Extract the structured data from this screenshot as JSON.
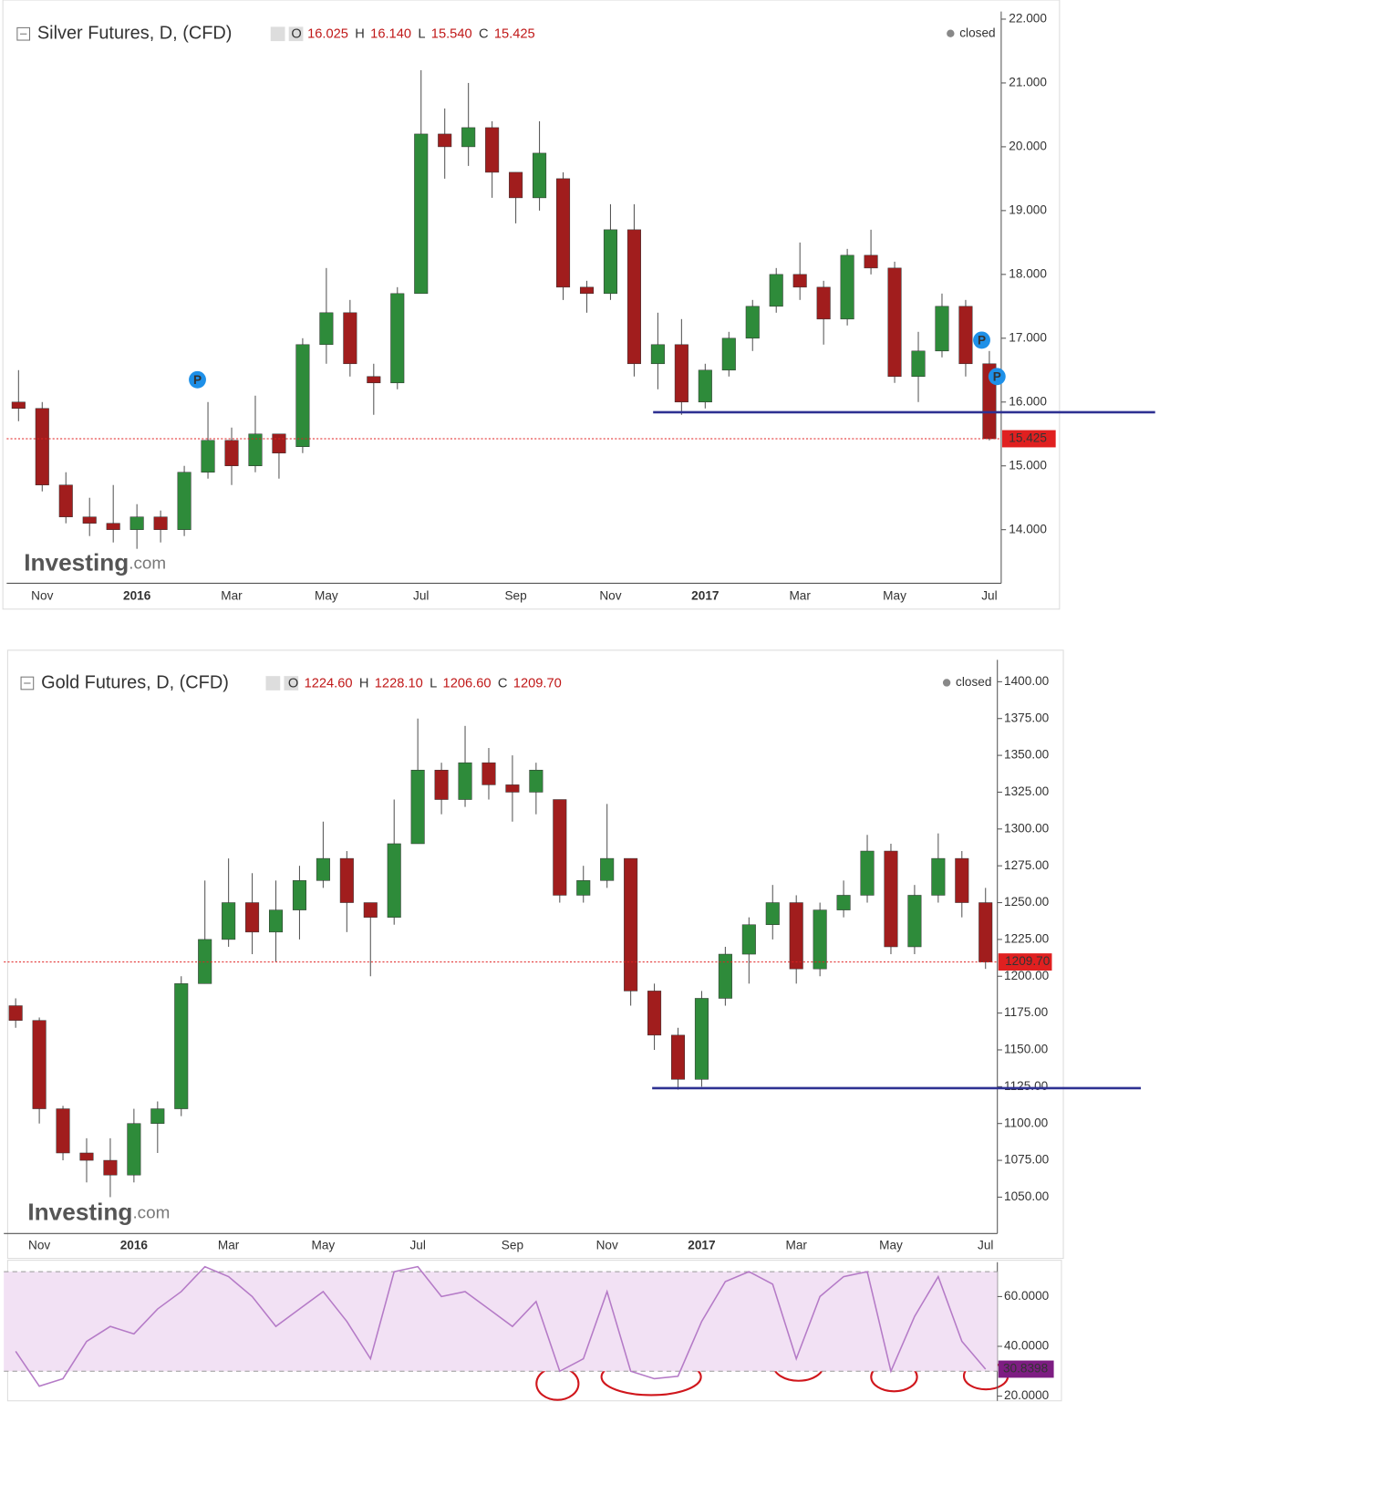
{
  "chart_data": [
    {
      "type": "candlestick",
      "title": "Silver Futures, D, (CFD)",
      "ohlc_labels": [
        "O",
        "H",
        "L",
        "C"
      ],
      "ohlc_values": [
        "16.025",
        "16.140",
        "15.540",
        "15.425"
      ],
      "status": "closed",
      "watermark": [
        "Investing",
        ".com"
      ],
      "categories": [
        null,
        "Nov",
        null,
        null,
        null,
        "2016",
        null,
        null,
        null,
        "Mar",
        null,
        null,
        null,
        "May",
        null,
        null,
        null,
        "Jul",
        null,
        null,
        null,
        "Sep",
        null,
        null,
        null,
        "Nov",
        null,
        null,
        null,
        "2017",
        null,
        null,
        null,
        "Mar",
        null,
        null,
        null,
        "May",
        null,
        null,
        null,
        "Jul"
      ],
      "open": [
        16.0,
        15.9,
        14.7,
        14.2,
        14.1,
        14.0,
        14.2,
        14.0,
        14.9,
        15.4,
        15.0,
        15.5,
        15.3,
        16.9,
        17.4,
        16.4,
        16.3,
        17.7,
        20.2,
        20.0,
        20.3,
        19.6,
        19.2,
        19.5,
        17.8,
        17.7,
        18.7,
        16.6,
        16.9,
        16.0,
        16.5,
        17.0,
        17.5,
        18.0,
        17.8,
        17.3,
        18.3,
        18.1,
        16.4,
        16.8,
        17.5,
        16.6
      ],
      "high": [
        16.5,
        16.0,
        14.9,
        14.5,
        14.7,
        14.4,
        14.3,
        15.0,
        16.0,
        15.6,
        16.1,
        15.5,
        17.0,
        18.1,
        17.6,
        16.6,
        17.8,
        21.2,
        20.6,
        21.0,
        20.4,
        19.6,
        20.4,
        19.6,
        17.9,
        19.1,
        19.1,
        17.4,
        17.3,
        16.6,
        17.1,
        17.6,
        18.1,
        18.5,
        17.9,
        18.4,
        18.7,
        18.2,
        17.1,
        17.7,
        17.6,
        16.8
      ],
      "low": [
        15.7,
        14.6,
        14.1,
        13.9,
        13.8,
        13.7,
        13.8,
        13.9,
        14.8,
        14.7,
        14.9,
        14.8,
        15.2,
        16.6,
        16.4,
        15.8,
        16.2,
        17.7,
        19.5,
        19.7,
        19.2,
        18.8,
        19.0,
        17.6,
        17.4,
        17.6,
        16.4,
        16.2,
        15.8,
        15.9,
        16.4,
        16.8,
        17.4,
        17.6,
        16.9,
        17.2,
        18.0,
        16.3,
        16.0,
        16.7,
        16.4,
        15.4
      ],
      "close": [
        15.9,
        14.7,
        14.2,
        14.1,
        14.0,
        14.2,
        14.0,
        14.9,
        15.4,
        15.0,
        15.5,
        15.2,
        16.9,
        17.4,
        16.6,
        16.3,
        17.7,
        20.2,
        20.0,
        20.3,
        19.6,
        19.2,
        19.9,
        17.8,
        17.7,
        18.7,
        16.6,
        16.9,
        16.0,
        16.5,
        17.0,
        17.5,
        18.0,
        17.8,
        17.3,
        18.3,
        18.1,
        16.4,
        16.8,
        17.5,
        16.6,
        15.425
      ],
      "last_price_label": "15.425",
      "up_color": "#2e8b3a",
      "down_color": "#a11d1d",
      "price_line_color": "#e02020",
      "support": {
        "value": 15.84,
        "color": "#2e3192"
      },
      "markers": [
        {
          "label": "P",
          "category": 8,
          "value": 16.35
        },
        {
          "label": "P",
          "category": 41,
          "value": 16.97
        },
        {
          "label": "P",
          "category": 41,
          "value": 16.4
        }
      ],
      "ylim": [
        13.16,
        22.12
      ],
      "yticks": [
        {
          "value": 14,
          "label": "14.000"
        },
        {
          "value": 15,
          "label": "15.000"
        },
        {
          "value": 16,
          "label": "16.000"
        },
        {
          "value": 17,
          "label": "17.000"
        },
        {
          "value": 18,
          "label": "18.000"
        },
        {
          "value": 19,
          "label": "19.000"
        },
        {
          "value": 20,
          "label": "20.000"
        },
        {
          "value": 21,
          "label": "21.000"
        },
        {
          "value": 22,
          "label": "22.000"
        }
      ]
    },
    {
      "type": "candlestick",
      "title": "Gold Futures, D, (CFD)",
      "ohlc_labels": [
        "O",
        "H",
        "L",
        "C"
      ],
      "ohlc_values": [
        "1224.60",
        "1228.10",
        "1206.60",
        "1209.70"
      ],
      "status": "closed",
      "watermark": [
        "Investing",
        ".com"
      ],
      "categories": [
        null,
        "Nov",
        null,
        null,
        null,
        "2016",
        null,
        null,
        null,
        "Mar",
        null,
        null,
        null,
        "May",
        null,
        null,
        null,
        "Jul",
        null,
        null,
        null,
        "Sep",
        null,
        null,
        null,
        "Nov",
        null,
        null,
        null,
        "2017",
        null,
        null,
        null,
        "Mar",
        null,
        null,
        null,
        "May",
        null,
        null,
        null,
        "Jul"
      ],
      "open": [
        1180,
        1170,
        1110,
        1080,
        1075,
        1065,
        1100,
        1110,
        1195,
        1225,
        1250,
        1230,
        1245,
        1265,
        1280,
        1250,
        1240,
        1290,
        1340,
        1320,
        1345,
        1330,
        1325,
        1320,
        1255,
        1265,
        1280,
        1190,
        1160,
        1130,
        1185,
        1215,
        1235,
        1250,
        1205,
        1245,
        1255,
        1285,
        1220,
        1255,
        1280,
        1250
      ],
      "high": [
        1185,
        1172,
        1112,
        1090,
        1090,
        1110,
        1115,
        1200,
        1265,
        1280,
        1270,
        1265,
        1275,
        1305,
        1285,
        1250,
        1320,
        1375,
        1345,
        1370,
        1355,
        1350,
        1345,
        1320,
        1275,
        1317,
        1280,
        1195,
        1165,
        1190,
        1220,
        1240,
        1262,
        1255,
        1250,
        1265,
        1296,
        1290,
        1262,
        1297,
        1285,
        1260
      ],
      "low": [
        1165,
        1100,
        1075,
        1060,
        1050,
        1060,
        1080,
        1105,
        1195,
        1220,
        1215,
        1210,
        1225,
        1260,
        1230,
        1200,
        1235,
        1290,
        1310,
        1315,
        1320,
        1305,
        1310,
        1250,
        1250,
        1260,
        1180,
        1150,
        1123,
        1125,
        1180,
        1195,
        1225,
        1195,
        1200,
        1240,
        1250,
        1215,
        1215,
        1250,
        1240,
        1205
      ],
      "close": [
        1170,
        1110,
        1080,
        1075,
        1065,
        1100,
        1110,
        1195,
        1225,
        1250,
        1230,
        1245,
        1265,
        1280,
        1250,
        1240,
        1290,
        1340,
        1320,
        1345,
        1330,
        1325,
        1340,
        1255,
        1265,
        1280,
        1190,
        1160,
        1130,
        1185,
        1215,
        1235,
        1250,
        1205,
        1245,
        1255,
        1285,
        1220,
        1255,
        1280,
        1250,
        1209.7
      ],
      "last_price_label": "1209.70",
      "up_color": "#2e8b3a",
      "down_color": "#a11d1d",
      "price_line_color": "#e02020",
      "support": {
        "value": 1124,
        "color": "#2e3192"
      },
      "ylim": [
        1025.3,
        1414.9
      ],
      "yticks": [
        {
          "value": 1050,
          "label": "1050.00"
        },
        {
          "value": 1075,
          "label": "1075.00"
        },
        {
          "value": 1100,
          "label": "1100.00"
        },
        {
          "value": 1125,
          "label": "1125.00"
        },
        {
          "value": 1150,
          "label": "1150.00"
        },
        {
          "value": 1175,
          "label": "1175.00"
        },
        {
          "value": 1200,
          "label": "1200.00"
        },
        {
          "value": 1225,
          "label": "1225.00"
        },
        {
          "value": 1250,
          "label": "1250.00"
        },
        {
          "value": 1275,
          "label": "1275.00"
        },
        {
          "value": 1300,
          "label": "1300.00"
        },
        {
          "value": 1325,
          "label": "1325.00"
        },
        {
          "value": 1350,
          "label": "1350.00"
        },
        {
          "value": 1375,
          "label": "1375.00"
        },
        {
          "value": 1400,
          "label": "1400.00"
        }
      ]
    },
    {
      "type": "line",
      "values": [
        38,
        24,
        27,
        42,
        48,
        45,
        55,
        62,
        72,
        68,
        60,
        48,
        55,
        62,
        50,
        35,
        70,
        72,
        60,
        62,
        55,
        48,
        58,
        30,
        35,
        62,
        30,
        27,
        28,
        50,
        66,
        70,
        65,
        35,
        60,
        68,
        70,
        30,
        52,
        68,
        42,
        30.8398
      ],
      "value_labels": {
        "41": "30.8398"
      },
      "color": "#b57bc7",
      "band_color": "#f2e1f4",
      "label_color": "#7d1d82",
      "bands": [
        30,
        70
      ],
      "ylim": [
        18.1,
        73.8
      ],
      "yticks": [
        {
          "value": 20,
          "label": "20.0000"
        },
        {
          "value": 40,
          "label": "40.0000"
        },
        {
          "value": 60,
          "label": "60.0000"
        }
      ]
    }
  ]
}
